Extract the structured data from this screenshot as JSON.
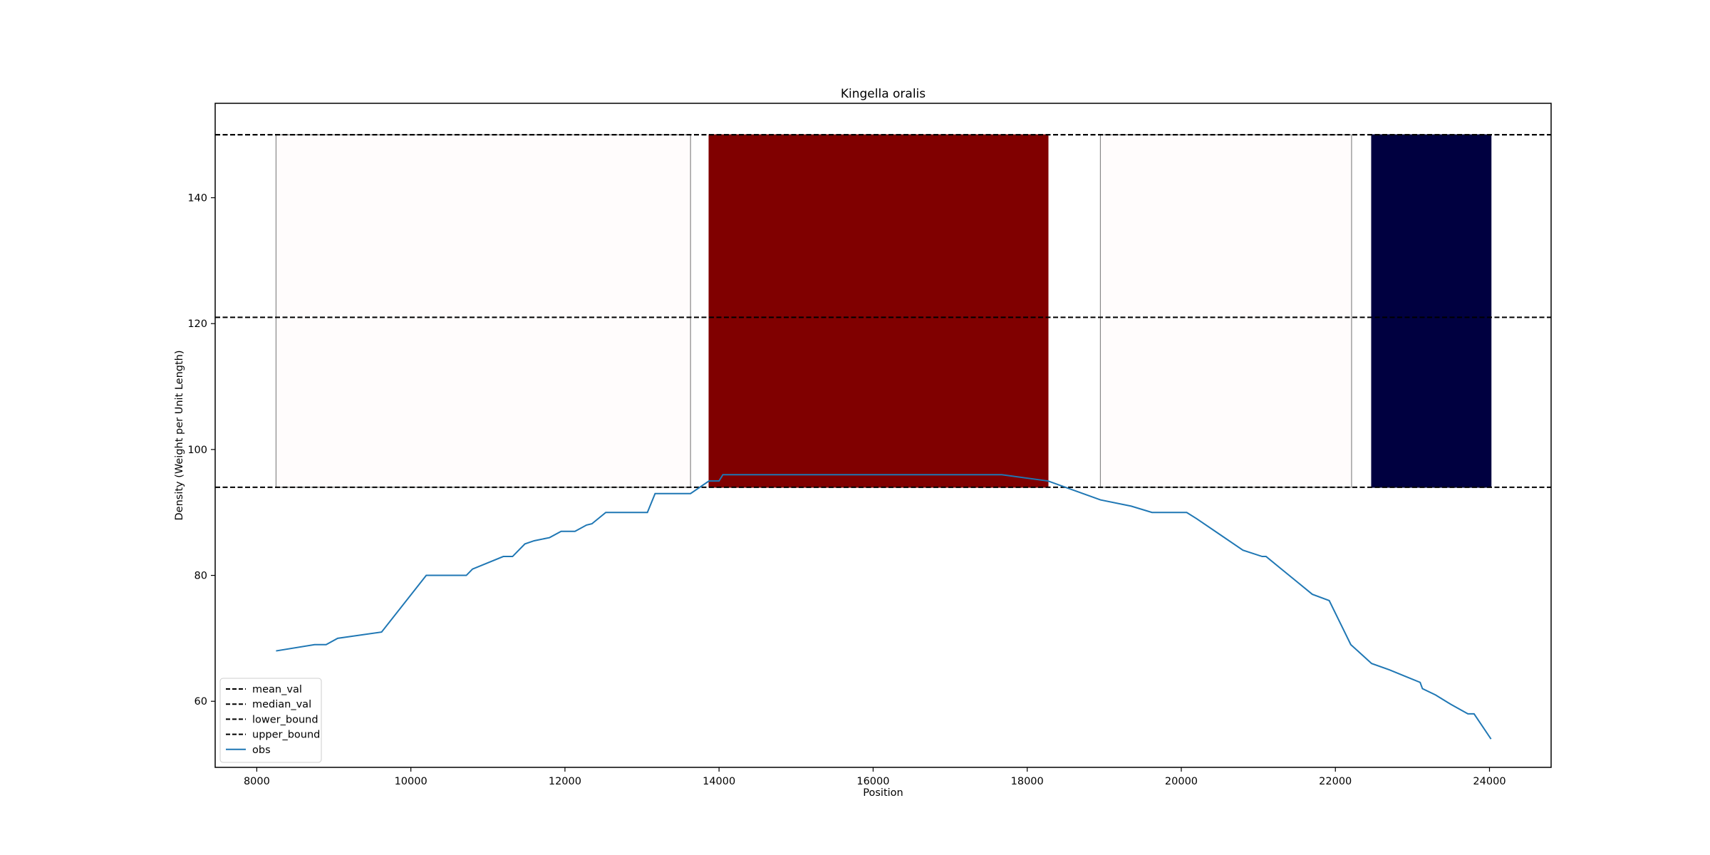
{
  "chart_data": {
    "type": "line",
    "title": "Kingella oralis",
    "xlabel": "Position",
    "ylabel": "Density (Weight per Unit Length)",
    "xlim": [
      7460,
      24800
    ],
    "ylim": [
      49.5,
      155
    ],
    "xticks": [
      8000,
      10000,
      12000,
      14000,
      16000,
      18000,
      20000,
      22000,
      24000
    ],
    "yticks": [
      60,
      80,
      100,
      120,
      140
    ],
    "grid": false,
    "legend_position": "lower-left",
    "hlines": [
      {
        "name": "mean_val",
        "y": 121
      },
      {
        "name": "median_val",
        "y": 150
      },
      {
        "name": "lower_bound",
        "y": 94
      },
      {
        "name": "upper_bound",
        "y": 150
      }
    ],
    "regions": [
      {
        "x0": 8250,
        "x1": 13630,
        "y0": 94,
        "y1": 150,
        "fill": "#fffcfc",
        "edge": "#888888"
      },
      {
        "x0": 13870,
        "x1": 18270,
        "y0": 94,
        "y1": 150,
        "fill": "#800000",
        "edge": "#800000"
      },
      {
        "x0": 18950,
        "x1": 22210,
        "y0": 94,
        "y1": 150,
        "fill": "#fffcfc",
        "edge": "#888888"
      },
      {
        "x0": 22470,
        "x1": 24020,
        "y0": 94,
        "y1": 150,
        "fill": "#000040",
        "edge": "#000040"
      }
    ],
    "series": [
      {
        "name": "obs",
        "color": "#1f77b4",
        "x": [
          8250,
          8750,
          8900,
          9050,
          9620,
          10200,
          10720,
          10800,
          11200,
          11320,
          11480,
          11600,
          11800,
          11950,
          12130,
          12280,
          12350,
          12530,
          12650,
          13070,
          13170,
          13300,
          13630,
          13870,
          14000,
          14050,
          16000,
          17000,
          17670,
          18270,
          18950,
          19350,
          19620,
          19800,
          20070,
          20200,
          20500,
          20800,
          21050,
          21100,
          21300,
          21500,
          21700,
          21920,
          22200,
          22470,
          22700,
          22900,
          23100,
          23130,
          23300,
          23500,
          23720,
          23800,
          24020
        ],
        "y": [
          68,
          69,
          69,
          70,
          71,
          80,
          80,
          81,
          83,
          83,
          85,
          85.5,
          86,
          87,
          87,
          88,
          88.2,
          90,
          90,
          90,
          93,
          93,
          93,
          95,
          95,
          96,
          96,
          96,
          96,
          95,
          92,
          91,
          90,
          90,
          90,
          89,
          86.5,
          84,
          83,
          83,
          81,
          79,
          77,
          76,
          69,
          66,
          65,
          64,
          63,
          62,
          61,
          59.5,
          58,
          58,
          54
        ]
      }
    ]
  }
}
